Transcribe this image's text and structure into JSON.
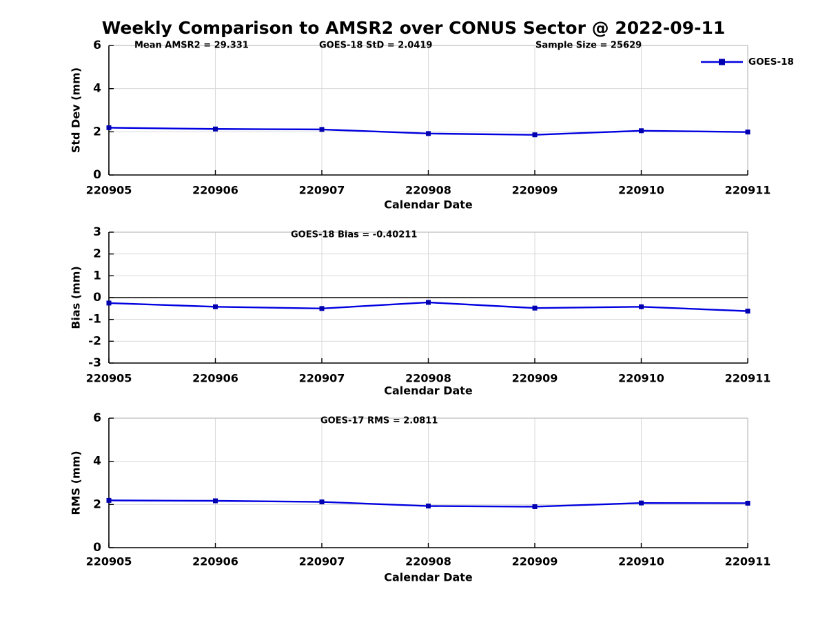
{
  "title": "Weekly Comparison to AMSR2 over CONUS Sector @ 2022-09-11",
  "colors": {
    "line": "#0000e0",
    "marker": "#0000b0",
    "grid": "#d8d8d8",
    "box_light": "#bebebe",
    "axis": "#000000",
    "zero_line": "#000000",
    "text": "#000000",
    "background": "#ffffff"
  },
  "x_axis": {
    "label": "Calendar Date",
    "categories": [
      "220905",
      "220906",
      "220907",
      "220908",
      "220909",
      "220910",
      "220911"
    ]
  },
  "legend": {
    "label": "GOES-18"
  },
  "chart_data": [
    {
      "type": "line",
      "ylabel": "Std Dev (mm)",
      "xlabel": "Calendar Date",
      "ylim": [
        0,
        6
      ],
      "yticks": [
        0,
        2,
        4,
        6
      ],
      "grid": true,
      "categories": [
        "220905",
        "220906",
        "220907",
        "220908",
        "220909",
        "220910",
        "220911"
      ],
      "series": [
        {
          "name": "GOES-18",
          "marker": "square",
          "values": [
            2.19,
            2.13,
            2.11,
            1.92,
            1.86,
            2.05,
            1.99
          ]
        }
      ],
      "annotations": [
        {
          "text": "Mean AMSR2 = 29.331"
        },
        {
          "text": "GOES-18 StD = 2.0419"
        },
        {
          "text": "Sample Size = 25629"
        }
      ],
      "legend": {
        "label": "GOES-18",
        "position": "top-right"
      }
    },
    {
      "type": "line",
      "ylabel": "Bias (mm)",
      "xlabel": "Calendar Date",
      "ylim": [
        -3,
        3
      ],
      "yticks": [
        -3,
        -2,
        -1,
        0,
        1,
        2,
        3
      ],
      "grid": true,
      "zero_line": true,
      "categories": [
        "220905",
        "220906",
        "220907",
        "220908",
        "220909",
        "220910",
        "220911"
      ],
      "series": [
        {
          "name": "GOES-18",
          "marker": "square",
          "values": [
            -0.25,
            -0.42,
            -0.5,
            -0.22,
            -0.48,
            -0.42,
            -0.62
          ]
        }
      ],
      "annotations": [
        {
          "text": "GOES-18 Bias  = -0.40211"
        }
      ]
    },
    {
      "type": "line",
      "ylabel": "RMS (mm)",
      "xlabel": "Calendar Date",
      "ylim": [
        0,
        6
      ],
      "yticks": [
        0,
        2,
        4,
        6
      ],
      "grid": true,
      "categories": [
        "220905",
        "220906",
        "220907",
        "220908",
        "220909",
        "220910",
        "220911"
      ],
      "series": [
        {
          "name": "GOES-18",
          "marker": "square",
          "values": [
            2.19,
            2.17,
            2.12,
            1.93,
            1.9,
            2.07,
            2.06
          ]
        }
      ],
      "annotations": [
        {
          "text": "GOES-17 RMS = 2.0811"
        }
      ]
    }
  ]
}
